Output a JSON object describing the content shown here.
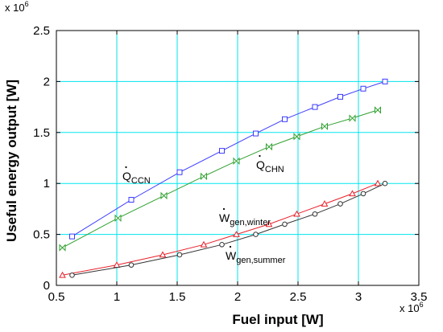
{
  "chart_data": {
    "type": "line",
    "xlabel": "Fuel input  [W]",
    "ylabel": "Useful energy output [W]",
    "x_multiplier": "x 10",
    "x_multiplier_exp": "6",
    "y_multiplier": "x 10",
    "y_multiplier_exp": "6",
    "xlim": [
      0.5,
      3.5
    ],
    "ylim": [
      0,
      2.5
    ],
    "xticks": [
      "0.5",
      "1",
      "1.5",
      "2",
      "2.5",
      "3",
      "3.5"
    ],
    "yticks": [
      "0",
      "0.5",
      "1",
      "1.5",
      "2",
      "2.5"
    ],
    "grid": true,
    "grid_color": "#00e5ee",
    "series": [
      {
        "label_main": "Q",
        "label_sub": "CCN",
        "color": "#3b3bff",
        "marker": "square",
        "x": [
          0.63,
          1.12,
          1.52,
          1.87,
          2.15,
          2.39,
          2.64,
          2.85,
          3.04,
          3.22
        ],
        "y": [
          0.48,
          0.84,
          1.11,
          1.32,
          1.49,
          1.63,
          1.75,
          1.85,
          1.93,
          2.0
        ]
      },
      {
        "label_main": "Q",
        "label_sub": "CHN",
        "color": "#2fa02f",
        "marker": "bowtie",
        "x": [
          0.55,
          1.01,
          1.39,
          1.72,
          1.99,
          2.26,
          2.49,
          2.72,
          2.95,
          3.16
        ],
        "y": [
          0.37,
          0.66,
          0.88,
          1.07,
          1.22,
          1.36,
          1.46,
          1.56,
          1.64,
          1.72
        ]
      },
      {
        "label_main": "W",
        "label_sub": "gen,winter",
        "color": "#e8202a",
        "marker": "triangle",
        "x": [
          0.55,
          1.0,
          1.38,
          1.72,
          1.99,
          2.26,
          2.49,
          2.72,
          2.95,
          3.16
        ],
        "y": [
          0.1,
          0.2,
          0.3,
          0.4,
          0.5,
          0.6,
          0.7,
          0.8,
          0.9,
          1.0
        ]
      },
      {
        "label_main": "W",
        "label_sub": "gen,summer",
        "color": "#333333",
        "marker": "circle",
        "x": [
          0.63,
          1.12,
          1.52,
          1.87,
          2.15,
          2.39,
          2.64,
          2.85,
          3.04,
          3.22
        ],
        "y": [
          0.1,
          0.2,
          0.3,
          0.4,
          0.5,
          0.6,
          0.7,
          0.8,
          0.9,
          1.0
        ]
      }
    ]
  }
}
